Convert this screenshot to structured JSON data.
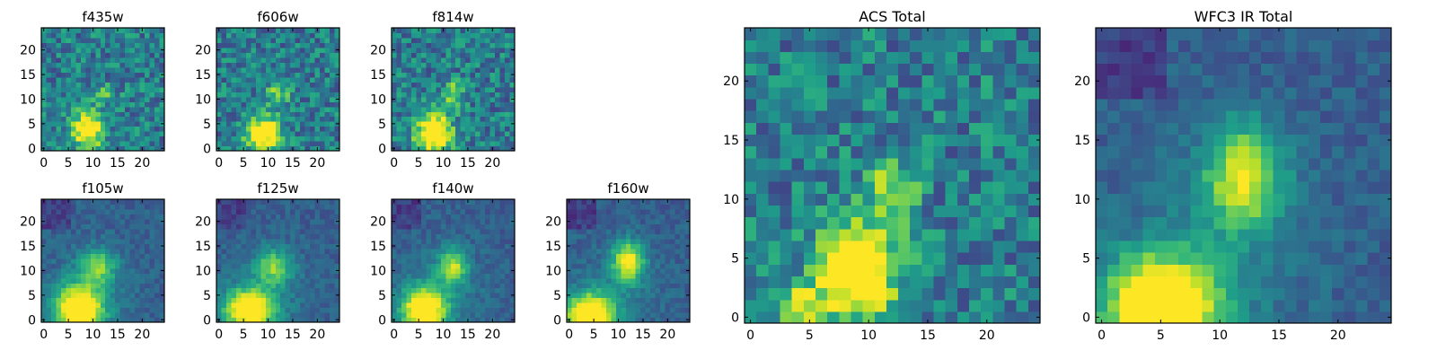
{
  "chart_data": [
    {
      "type": "heatmap",
      "title": "f435w",
      "xlim": [
        -0.5,
        24.5
      ],
      "ylim": [
        -0.5,
        24.5
      ],
      "x_ticks": [
        0,
        5,
        10,
        15,
        20
      ],
      "y_ticks": [
        0,
        5,
        10,
        15,
        20
      ],
      "colormap": "viridis",
      "grid": false,
      "pattern": "noisy",
      "peaks": [
        {
          "x": 9,
          "y": 4,
          "amp": 0.8,
          "sx": 2.2,
          "sy": 2.6
        },
        {
          "x": 12,
          "y": 11,
          "amp": 0.35,
          "sx": 1.8,
          "sy": 1.2
        }
      ]
    },
    {
      "type": "heatmap",
      "title": "f606w",
      "xlim": [
        -0.5,
        24.5
      ],
      "ylim": [
        -0.5,
        24.5
      ],
      "x_ticks": [
        0,
        5,
        10,
        15,
        20
      ],
      "y_ticks": [
        0,
        5,
        10,
        15,
        20
      ],
      "colormap": "viridis",
      "grid": false,
      "pattern": "noisy",
      "peaks": [
        {
          "x": 9,
          "y": 3,
          "amp": 0.85,
          "sx": 2.4,
          "sy": 2.6
        },
        {
          "x": 12,
          "y": 11,
          "amp": 0.4,
          "sx": 1.6,
          "sy": 1.6
        }
      ]
    },
    {
      "type": "heatmap",
      "title": "f814w",
      "xlim": [
        -0.5,
        24.5
      ],
      "ylim": [
        -0.5,
        24.5
      ],
      "x_ticks": [
        0,
        5,
        10,
        15,
        20
      ],
      "y_ticks": [
        0,
        5,
        10,
        15,
        20
      ],
      "colormap": "viridis",
      "grid": false,
      "pattern": "noisy",
      "peaks": [
        {
          "x": 8,
          "y": 3,
          "amp": 0.85,
          "sx": 2.5,
          "sy": 3.0
        },
        {
          "x": 12,
          "y": 11,
          "amp": 0.45,
          "sx": 1.4,
          "sy": 1.8
        }
      ]
    },
    {
      "type": "heatmap",
      "title": "f105w",
      "xlim": [
        -0.5,
        24.5
      ],
      "ylim": [
        -0.5,
        24.5
      ],
      "x_ticks": [
        0,
        5,
        10,
        15,
        20
      ],
      "y_ticks": [
        0,
        5,
        10,
        15,
        20
      ],
      "colormap": "viridis",
      "grid": false,
      "pattern": "smooth",
      "peaks": [
        {
          "x": 7,
          "y": 2,
          "amp": 0.9,
          "sx": 3.5,
          "sy": 3.5
        },
        {
          "x": 11,
          "y": 11,
          "amp": 0.45,
          "sx": 2.5,
          "sy": 2.5
        }
      ]
    },
    {
      "type": "heatmap",
      "title": "f125w",
      "xlim": [
        -0.5,
        24.5
      ],
      "ylim": [
        -0.5,
        24.5
      ],
      "x_ticks": [
        0,
        5,
        10,
        15,
        20
      ],
      "y_ticks": [
        0,
        5,
        10,
        15,
        20
      ],
      "colormap": "viridis",
      "grid": false,
      "pattern": "smooth",
      "peaks": [
        {
          "x": 6,
          "y": 2,
          "amp": 0.85,
          "sx": 3.5,
          "sy": 3.0
        },
        {
          "x": 11,
          "y": 11,
          "amp": 0.45,
          "sx": 2.5,
          "sy": 2.5
        }
      ]
    },
    {
      "type": "heatmap",
      "title": "f140w",
      "xlim": [
        -0.5,
        24.5
      ],
      "ylim": [
        -0.5,
        24.5
      ],
      "x_ticks": [
        0,
        5,
        10,
        15,
        20
      ],
      "y_ticks": [
        0,
        5,
        10,
        15,
        20
      ],
      "colormap": "viridis",
      "grid": false,
      "pattern": "smooth",
      "peaks": [
        {
          "x": 6,
          "y": 2,
          "amp": 0.9,
          "sx": 3.2,
          "sy": 3.2
        },
        {
          "x": 12,
          "y": 11,
          "amp": 0.55,
          "sx": 2.0,
          "sy": 2.5
        }
      ]
    },
    {
      "type": "heatmap",
      "title": "f160w",
      "xlim": [
        -0.5,
        24.5
      ],
      "ylim": [
        -0.5,
        24.5
      ],
      "x_ticks": [
        0,
        5,
        10,
        15,
        20
      ],
      "y_ticks": [
        0,
        5,
        10,
        15,
        20
      ],
      "colormap": "viridis",
      "grid": false,
      "pattern": "smooth",
      "peaks": [
        {
          "x": 4,
          "y": 1,
          "amp": 0.95,
          "sx": 3.5,
          "sy": 3.0
        },
        {
          "x": 12,
          "y": 12,
          "amp": 0.7,
          "sx": 2.2,
          "sy": 2.8
        }
      ]
    },
    {
      "type": "heatmap",
      "title": "ACS Total",
      "xlim": [
        -0.5,
        24.5
      ],
      "ylim": [
        -0.5,
        24.5
      ],
      "x_ticks": [
        0,
        5,
        10,
        15,
        20
      ],
      "y_ticks": [
        0,
        5,
        10,
        15,
        20
      ],
      "colormap": "viridis",
      "grid": false,
      "pattern": "noisy",
      "peaks": [
        {
          "x": 9,
          "y": 4,
          "amp": 0.85,
          "sx": 2.4,
          "sy": 3.0
        },
        {
          "x": 4,
          "y": 1,
          "amp": 0.4,
          "sx": 2.0,
          "sy": 1.2
        },
        {
          "x": 12,
          "y": 11,
          "amp": 0.45,
          "sx": 1.4,
          "sy": 1.8
        }
      ]
    },
    {
      "type": "heatmap",
      "title": "WFC3 IR Total",
      "xlim": [
        -0.5,
        24.5
      ],
      "ylim": [
        -0.5,
        24.5
      ],
      "x_ticks": [
        0,
        5,
        10,
        15,
        20
      ],
      "y_ticks": [
        0,
        5,
        10,
        15,
        20
      ],
      "colormap": "viridis",
      "grid": false,
      "pattern": "smooth",
      "peaks": [
        {
          "x": 5,
          "y": 1,
          "amp": 0.95,
          "sx": 3.5,
          "sy": 3.0
        },
        {
          "x": 12,
          "y": 12,
          "amp": 0.65,
          "sx": 2.2,
          "sy": 3.0
        }
      ]
    }
  ]
}
